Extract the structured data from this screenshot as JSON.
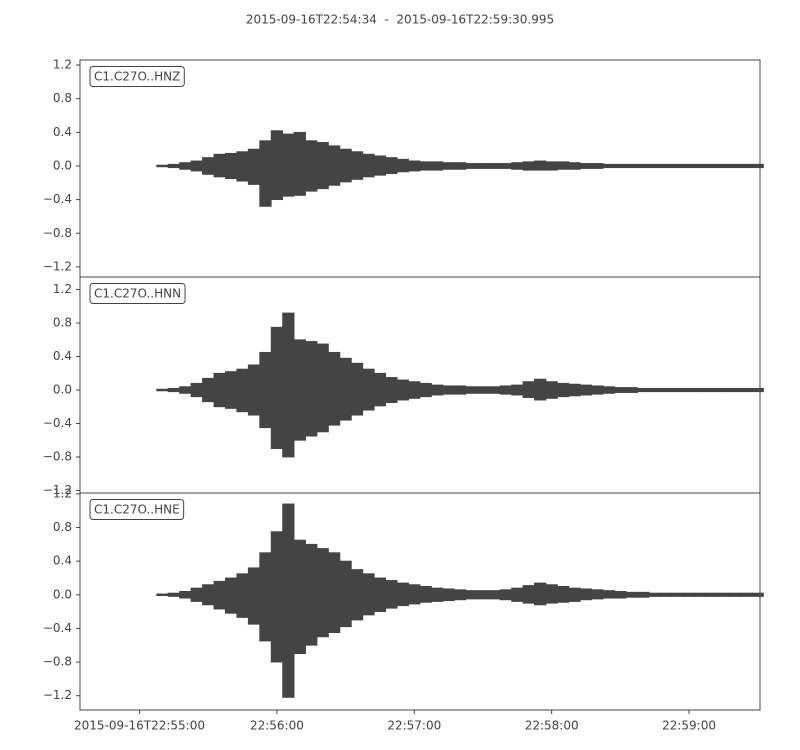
{
  "chart_data": {
    "type": "seismogram",
    "title": "2015-09-16T22:54:34  -  2015-09-16T22:59:30.995",
    "xlim": [
      "2015-09-16T22:54:34",
      "2015-09-16T22:59:30.995"
    ],
    "xticks": [
      "2015-09-16T22:55:00",
      {
        "value": "2015-09-16T22:56:00",
        "label": "22:56:00"
      },
      {
        "value": "2015-09-16T22:57:00",
        "label": "22:57:00"
      },
      {
        "value": "2015-09-16T22:58:00",
        "label": "22:58:00"
      },
      {
        "value": "2015-09-16T22:59:00",
        "label": "22:59:00"
      }
    ],
    "x": [
      "2015-09-16T22:54:35",
      "2015-09-16T22:54:40",
      "2015-09-16T22:54:45",
      "2015-09-16T22:54:50",
      "2015-09-16T22:54:55",
      "2015-09-16T22:55:00",
      "2015-09-16T22:55:05",
      "2015-09-16T22:55:10",
      "2015-09-16T22:55:15",
      "2015-09-16T22:55:20",
      "2015-09-16T22:55:25",
      "2015-09-16T22:55:30",
      "2015-09-16T22:55:35",
      "2015-09-16T22:55:40",
      "2015-09-16T22:55:45",
      "2015-09-16T22:55:50",
      "2015-09-16T22:55:55",
      "2015-09-16T22:56:00",
      "2015-09-16T22:56:05",
      "2015-09-16T22:56:10",
      "2015-09-16T22:56:15",
      "2015-09-16T22:56:20",
      "2015-09-16T22:56:25",
      "2015-09-16T22:56:30",
      "2015-09-16T22:56:35",
      "2015-09-16T22:56:40",
      "2015-09-16T22:56:45",
      "2015-09-16T22:56:50",
      "2015-09-16T22:56:55",
      "2015-09-16T22:57:00",
      "2015-09-16T22:57:05",
      "2015-09-16T22:57:10",
      "2015-09-16T22:57:15",
      "2015-09-16T22:57:20",
      "2015-09-16T22:57:25",
      "2015-09-16T22:57:30",
      "2015-09-16T22:57:35",
      "2015-09-16T22:57:40",
      "2015-09-16T22:57:45",
      "2015-09-16T22:57:50",
      "2015-09-16T22:57:55",
      "2015-09-16T22:58:00",
      "2015-09-16T22:58:05",
      "2015-09-16T22:58:10",
      "2015-09-16T22:58:15",
      "2015-09-16T22:58:20",
      "2015-09-16T22:58:25",
      "2015-09-16T22:58:30",
      "2015-09-16T22:58:35",
      "2015-09-16T22:58:40",
      "2015-09-16T22:58:45",
      "2015-09-16T22:58:50",
      "2015-09-16T22:58:55",
      "2015-09-16T22:59:00",
      "2015-09-16T22:59:05",
      "2015-09-16T22:59:10",
      "2015-09-16T22:59:15",
      "2015-09-16T22:59:20",
      "2015-09-16T22:59:25",
      "2015-09-16T22:59:30"
    ],
    "series": [
      {
        "name": "C1.C27O..HNZ",
        "color": "#444444",
        "ylim": [
          -1.32,
          1.26
        ],
        "yticks": [
          1.2,
          0.8,
          0.4,
          {
            "value": 0,
            "label": "0.0"
          },
          {
            "value": -0.4,
            "label": "−0.4"
          },
          {
            "value": -0.8,
            "label": "−0.8"
          },
          {
            "value": -1.2,
            "label": "−1.2"
          }
        ],
        "values": [
          0,
          0,
          0,
          0,
          0,
          0,
          0,
          0.01,
          0.02,
          0.04,
          0.06,
          0.1,
          0.14,
          0.15,
          0.17,
          0.2,
          0.3,
          0.42,
          0.38,
          0.4,
          0.3,
          0.28,
          0.24,
          0.2,
          0.17,
          0.14,
          0.12,
          0.1,
          0.08,
          0.06,
          0.05,
          0.05,
          0.04,
          0.04,
          0.03,
          0.03,
          0.03,
          0.03,
          0.04,
          0.05,
          0.06,
          0.05,
          0.05,
          0.04,
          0.03,
          0.03,
          0.02,
          0.02,
          0.02,
          0.02,
          0.02,
          0.02,
          0.02,
          0.02,
          0.02,
          0.02,
          0.02,
          0.02,
          0.02,
          0.02
        ],
        "min": [
          0,
          0,
          0,
          0,
          0,
          0,
          0,
          -0.01,
          -0.02,
          -0.04,
          -0.06,
          -0.1,
          -0.13,
          -0.15,
          -0.18,
          -0.22,
          -0.48,
          -0.4,
          -0.36,
          -0.35,
          -0.3,
          -0.27,
          -0.23,
          -0.19,
          -0.16,
          -0.13,
          -0.11,
          -0.09,
          -0.07,
          -0.06,
          -0.05,
          -0.05,
          -0.04,
          -0.04,
          -0.03,
          -0.03,
          -0.03,
          -0.03,
          -0.04,
          -0.05,
          -0.05,
          -0.05,
          -0.04,
          -0.04,
          -0.03,
          -0.03,
          -0.02,
          -0.02,
          -0.02,
          -0.02,
          -0.02,
          -0.02,
          -0.02,
          -0.02,
          -0.02,
          -0.02,
          -0.02,
          -0.02,
          -0.02,
          -0.02
        ]
      },
      {
        "name": "C1.C27O..HNN",
        "color": "#444444",
        "ylim": [
          -1.23,
          1.35
        ],
        "yticks": [
          1.2,
          0.8,
          0.4,
          {
            "value": 0,
            "label": "0.0"
          },
          {
            "value": -0.4,
            "label": "−0.4"
          },
          {
            "value": -0.8,
            "label": "−0.8"
          },
          {
            "value": -1.2,
            "label": "−1.2"
          }
        ],
        "values": [
          0,
          0,
          0,
          0,
          0,
          0,
          0,
          0.01,
          0.02,
          0.04,
          0.08,
          0.14,
          0.2,
          0.22,
          0.25,
          0.3,
          0.45,
          0.75,
          0.92,
          0.6,
          0.58,
          0.55,
          0.45,
          0.38,
          0.32,
          0.25,
          0.2,
          0.15,
          0.12,
          0.1,
          0.08,
          0.06,
          0.05,
          0.05,
          0.04,
          0.04,
          0.04,
          0.05,
          0.06,
          0.1,
          0.13,
          0.1,
          0.08,
          0.07,
          0.06,
          0.05,
          0.04,
          0.03,
          0.03,
          0.02,
          0.02,
          0.02,
          0.02,
          0.02,
          0.02,
          0.02,
          0.02,
          0.02,
          0.02,
          0.02
        ],
        "min": [
          0,
          0,
          0,
          0,
          0,
          0,
          0,
          -0.01,
          -0.02,
          -0.04,
          -0.08,
          -0.14,
          -0.2,
          -0.22,
          -0.26,
          -0.3,
          -0.45,
          -0.7,
          -0.8,
          -0.6,
          -0.55,
          -0.5,
          -0.42,
          -0.36,
          -0.3,
          -0.24,
          -0.19,
          -0.15,
          -0.12,
          -0.1,
          -0.08,
          -0.06,
          -0.05,
          -0.05,
          -0.04,
          -0.04,
          -0.04,
          -0.05,
          -0.06,
          -0.09,
          -0.12,
          -0.1,
          -0.08,
          -0.07,
          -0.06,
          -0.05,
          -0.04,
          -0.03,
          -0.03,
          -0.02,
          -0.02,
          -0.02,
          -0.02,
          -0.02,
          -0.02,
          -0.02,
          -0.02,
          -0.02,
          -0.02,
          -0.02
        ]
      },
      {
        "name": "C1.C27O..HNE",
        "color": "#444444",
        "ylim": [
          -1.37,
          1.21
        ],
        "yticks": [
          1.2,
          0.8,
          0.4,
          {
            "value": 0,
            "label": "0.0"
          },
          {
            "value": -0.4,
            "label": "−0.4"
          },
          {
            "value": -0.8,
            "label": "−0.8"
          },
          {
            "value": -1.2,
            "label": "−1.2"
          }
        ],
        "values": [
          0,
          0,
          0,
          0,
          0,
          0,
          0,
          0.01,
          0.02,
          0.04,
          0.08,
          0.12,
          0.16,
          0.2,
          0.25,
          0.32,
          0.5,
          0.75,
          1.08,
          0.65,
          0.6,
          0.55,
          0.5,
          0.4,
          0.3,
          0.25,
          0.2,
          0.17,
          0.14,
          0.12,
          0.1,
          0.08,
          0.07,
          0.06,
          0.05,
          0.05,
          0.05,
          0.06,
          0.08,
          0.11,
          0.14,
          0.12,
          0.1,
          0.08,
          0.07,
          0.06,
          0.05,
          0.04,
          0.03,
          0.03,
          0.02,
          0.02,
          0.02,
          0.02,
          0.02,
          0.02,
          0.02,
          0.02,
          0.02,
          0.02
        ],
        "min": [
          0,
          0,
          0,
          0,
          0,
          0,
          0,
          -0.01,
          -0.02,
          -0.04,
          -0.08,
          -0.12,
          -0.17,
          -0.22,
          -0.27,
          -0.35,
          -0.55,
          -0.8,
          -1.22,
          -0.7,
          -0.6,
          -0.5,
          -0.45,
          -0.38,
          -0.3,
          -0.24,
          -0.2,
          -0.16,
          -0.13,
          -0.11,
          -0.09,
          -0.08,
          -0.07,
          -0.06,
          -0.05,
          -0.05,
          -0.05,
          -0.06,
          -0.08,
          -0.1,
          -0.12,
          -0.1,
          -0.09,
          -0.08,
          -0.06,
          -0.05,
          -0.04,
          -0.04,
          -0.03,
          -0.03,
          -0.02,
          -0.02,
          -0.02,
          -0.02,
          -0.02,
          -0.02,
          -0.02,
          -0.02,
          -0.02,
          -0.02
        ]
      }
    ]
  }
}
